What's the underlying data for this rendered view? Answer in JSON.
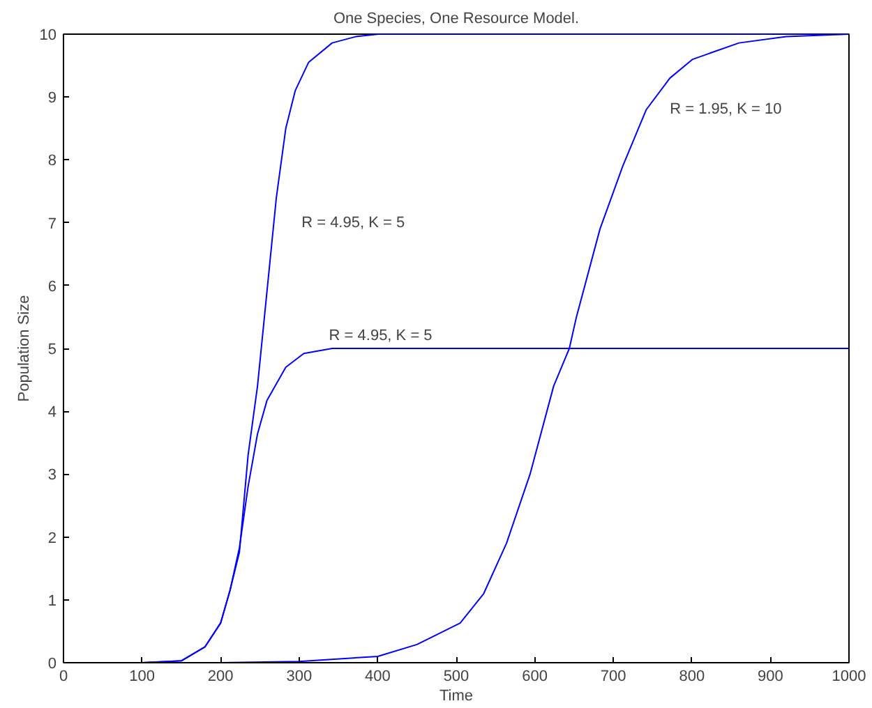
{
  "chart_data": {
    "type": "line",
    "title": "One Species, One Resource Model.",
    "xlabel": "Time",
    "ylabel": "Population Size",
    "xlim": [
      0,
      1000
    ],
    "ylim": [
      0,
      10
    ],
    "xticks": [
      0,
      100,
      200,
      300,
      400,
      500,
      600,
      700,
      800,
      900,
      1000
    ],
    "yticks": [
      0,
      1,
      2,
      3,
      4,
      5,
      6,
      7,
      8,
      9,
      10
    ],
    "grid": false,
    "marker": "none",
    "line_style": "solid",
    "series": [
      {
        "color": "#0000ff",
        "x": [
          0,
          100,
          150,
          180,
          200,
          212,
          224,
          235,
          247,
          259,
          271,
          283,
          295,
          312,
          342,
          372,
          401,
          500,
          700,
          1000
        ],
        "values": [
          0,
          0,
          0.03,
          0.25,
          0.63,
          1.15,
          1.76,
          3.3,
          4.4,
          5.9,
          7.4,
          8.5,
          9.1,
          9.55,
          9.86,
          9.96,
          10,
          10,
          10,
          10
        ]
      },
      {
        "color": "#0000ff",
        "x": [
          0,
          100,
          150,
          180,
          200,
          212,
          224,
          235,
          247,
          259,
          283,
          306,
          342,
          400,
          700,
          1000
        ],
        "values": [
          0,
          0,
          0.03,
          0.25,
          0.63,
          1.15,
          1.83,
          2.8,
          3.64,
          4.17,
          4.7,
          4.92,
          5,
          5,
          5,
          5
        ]
      },
      {
        "color": "#0000ff",
        "x": [
          200,
          300,
          400,
          450,
          505,
          535,
          564,
          594,
          624,
          644,
          653,
          683,
          712,
          742,
          772,
          801,
          860,
          920,
          1000
        ],
        "values": [
          0,
          0.02,
          0.1,
          0.29,
          0.63,
          1.1,
          1.9,
          3.0,
          4.4,
          5,
          5.5,
          6.9,
          7.9,
          8.8,
          9.3,
          9.6,
          9.86,
          9.96,
          10
        ]
      }
    ],
    "annotations": [
      "R = 4.95, K = 5",
      "R = 4.95, K = 5",
      "R = 1.95, K = 10"
    ]
  }
}
